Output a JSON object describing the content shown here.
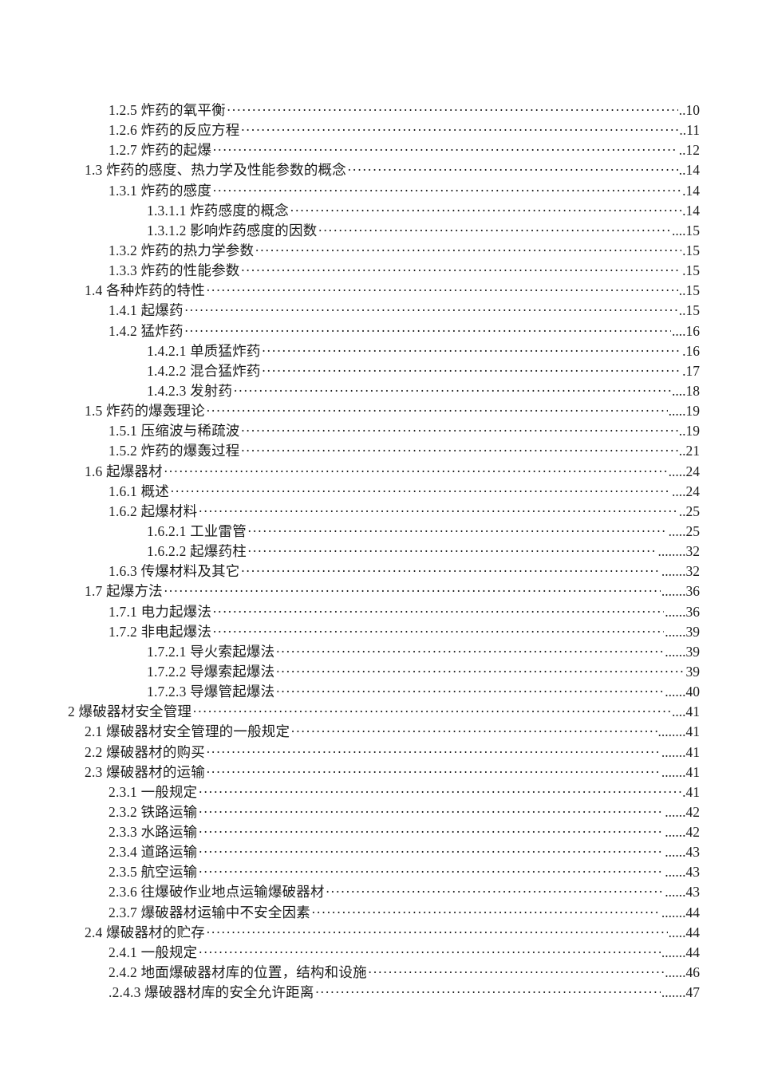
{
  "page": {
    "background": "#ffffff",
    "text_color": "#1c1c1c"
  },
  "toc": {
    "leader_char": "·",
    "entries": [
      {
        "level": 2,
        "label": "1.2.5 炸药的氧平衡",
        "page": "..10"
      },
      {
        "level": 2,
        "label": "1.2.6 炸药的反应方程",
        "page": "..11"
      },
      {
        "level": 2,
        "label": "1.2.7 炸药的起爆",
        "page": "..12"
      },
      {
        "level": 1,
        "label": "1.3 炸药的感度、热力学及性能参数的概念",
        "page": "..14"
      },
      {
        "level": 2,
        "label": "1.3.1 炸药的感度",
        "page": ".14"
      },
      {
        "level": 3,
        "label": "1.3.1.1 炸药感度的概念",
        "page": ".14"
      },
      {
        "level": 3,
        "label": "1.3.1.2 影响炸药感度的因数",
        "page": "....15"
      },
      {
        "level": 2,
        "label": "1.3.2 炸药的热力学参数",
        "page": ".15"
      },
      {
        "level": 2,
        "label": "1.3.3 炸药的性能参数",
        "page": ".15"
      },
      {
        "level": 1,
        "label": "1.4 各种炸药的特性",
        "page": "..15"
      },
      {
        "level": 2,
        "label": "1.4.1 起爆药",
        "page": "..15"
      },
      {
        "level": 2,
        "label": "1.4.2 猛炸药",
        "page": "....16"
      },
      {
        "level": 3,
        "label": "1.4.2.1 单质猛炸药",
        "page": ".16"
      },
      {
        "level": 3,
        "label": "1.4.2.2 混合猛炸药",
        "page": ".17"
      },
      {
        "level": 3,
        "label": "1.4.2.3 发射药",
        "page": "....18"
      },
      {
        "level": 1,
        "label": "1.5 炸药的爆轰理论",
        "page": ".....19"
      },
      {
        "level": 2,
        "label": "1.5.1 压缩波与稀疏波",
        "page": "..19"
      },
      {
        "level": 2,
        "label": "1.5.2 炸药的爆轰过程",
        "page": "..21"
      },
      {
        "level": 1,
        "label": "1.6 起爆器材",
        "page": ".....24"
      },
      {
        "level": 2,
        "label": "1.6.1 概述",
        "page": "....24"
      },
      {
        "level": 2,
        "label": "1.6.2 起爆材料",
        "page": "..25"
      },
      {
        "level": 3,
        "label": "1.6.2.1 工业雷管",
        "page": ".....25"
      },
      {
        "level": 3,
        "label": "1.6.2.2 起爆药柱",
        "page": "........32"
      },
      {
        "level": 2,
        "label": "1.6.3 传爆材料及其它",
        "page": ".......32"
      },
      {
        "level": 1,
        "label": "1.7 起爆方法",
        "page": ".......36"
      },
      {
        "level": 2,
        "label": "1.7.1 电力起爆法",
        "page": "......36"
      },
      {
        "level": 2,
        "label": "1.7.2 非电起爆法",
        "page": "......39"
      },
      {
        "level": 3,
        "label": "1.7.2.1 导火索起爆法",
        "page": "......39"
      },
      {
        "level": 3,
        "label": "1.7.2.2 导爆索起爆法",
        "page": "39"
      },
      {
        "level": 3,
        "label": "1.7.2.3 导爆管起爆法",
        "page": "......40"
      },
      {
        "level": 0,
        "label": "2 爆破器材安全管理",
        "page": "....41"
      },
      {
        "level": 1,
        "label": "2.1 爆破器材安全管理的一般规定",
        "page": "........41"
      },
      {
        "level": 1,
        "label": "2.2 爆破器材的购买",
        "page": ".......41"
      },
      {
        "level": 1,
        "label": "2.3 爆破器材的运输",
        "page": ".......41"
      },
      {
        "level": 2,
        "label": "2.3.1 一般规定",
        "page": ".41"
      },
      {
        "level": 2,
        "label": "2.3.2 铁路运输",
        "page": "......42"
      },
      {
        "level": 2,
        "label": "2.3.3 水路运输",
        "page": "......42"
      },
      {
        "level": 2,
        "label": "2.3.4 道路运输",
        "page": "......43"
      },
      {
        "level": 2,
        "label": "2.3.5 航空运输",
        "page": "......43"
      },
      {
        "level": 2,
        "label": "2.3.6 往爆破作业地点运输爆破器材",
        "page": "......43"
      },
      {
        "level": 2,
        "label": "2.3.7 爆破器材运输中不安全因素",
        "page": ".......44"
      },
      {
        "level": 1,
        "label": "2.4 爆破器材的贮存",
        "page": ".....44"
      },
      {
        "level": 2,
        "label": "2.4.1 一般规定",
        "page": ".......44"
      },
      {
        "level": 2,
        "label": "2.4.2 地面爆破器材库的位置，结构和设施",
        "page": "......46"
      },
      {
        "level": 2,
        "label": ".2.4.3 爆破器材库的安全允许距离",
        "page": ".......47"
      }
    ]
  }
}
